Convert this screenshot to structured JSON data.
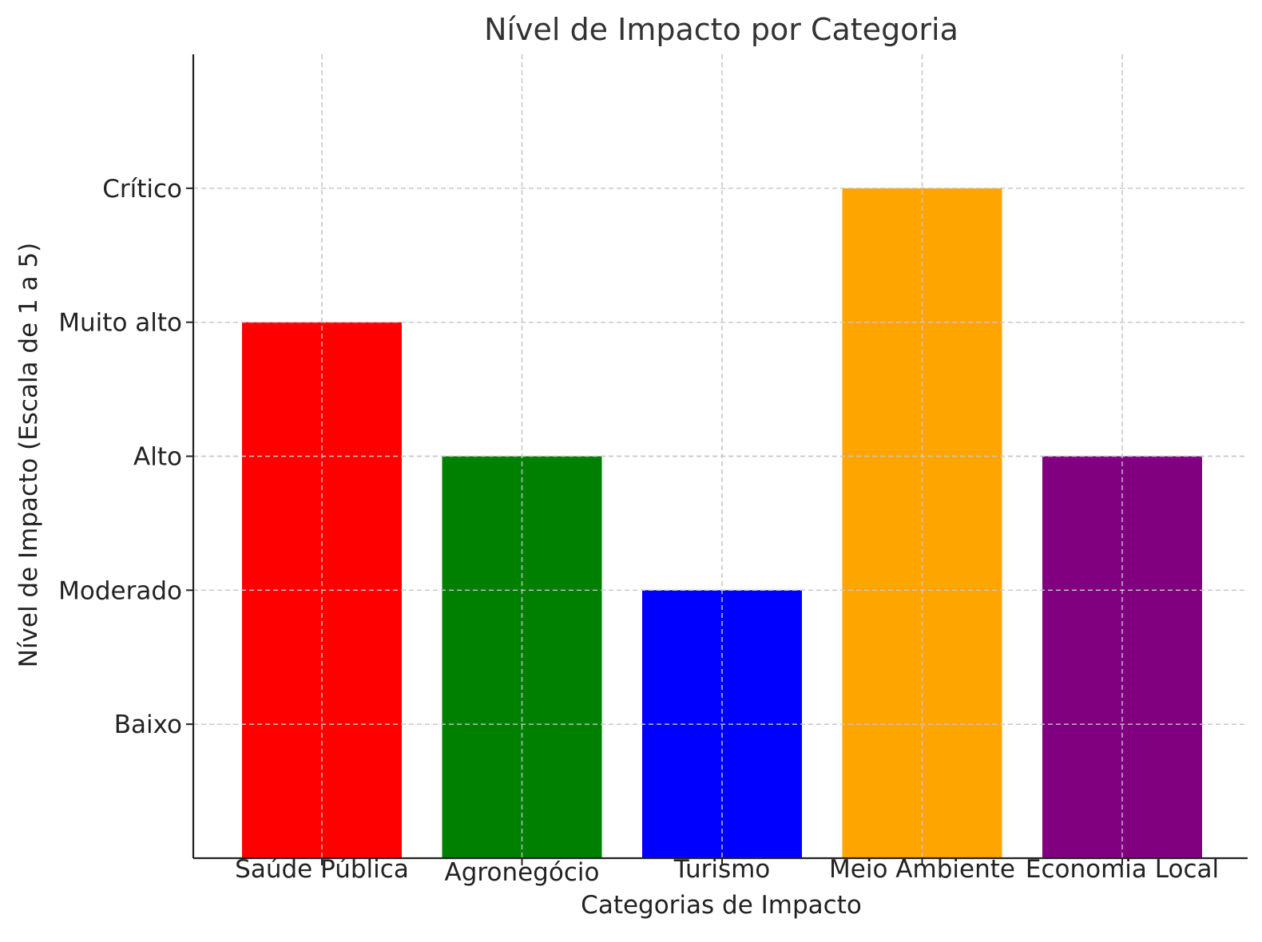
{
  "chart_data": {
    "type": "bar",
    "title": "Nível de Impacto por Categoria",
    "xlabel": "Categorias de Impacto",
    "ylabel": "Nível de Impacto (Escala de 1 a 5)",
    "categories": [
      "Saúde Pública",
      "Agronegócio",
      "Turismo",
      "Meio Ambiente",
      "Economia Local"
    ],
    "values": [
      4,
      3,
      2,
      5,
      3
    ],
    "colors": [
      "#ff0000",
      "#008000",
      "#0000ff",
      "#ffa500",
      "#800080"
    ],
    "ylim": [
      0,
      6
    ],
    "yticks": [
      {
        "value": 1,
        "label": "Baixo"
      },
      {
        "value": 2,
        "label": "Moderado"
      },
      {
        "value": 3,
        "label": "Alto"
      },
      {
        "value": 4,
        "label": "Muito alto"
      },
      {
        "value": 5,
        "label": "Crítico"
      }
    ],
    "grid": true,
    "legend": "none"
  }
}
